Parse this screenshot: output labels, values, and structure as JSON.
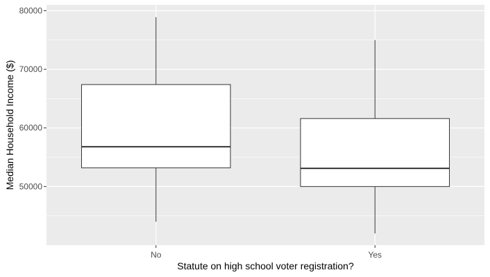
{
  "chart_data": {
    "type": "boxplot",
    "title": "",
    "xlabel": "Statute on high school voter registration?",
    "ylabel": "Median Household Income ($)",
    "categories": [
      "No",
      "Yes"
    ],
    "boxes": [
      {
        "category": "No",
        "whisker_low": 44000,
        "q1": 53200,
        "median": 56800,
        "q3": 67400,
        "whisker_high": 78900
      },
      {
        "category": "Yes",
        "whisker_low": 42000,
        "q1": 50000,
        "median": 53100,
        "q3": 61600,
        "whisker_high": 75000
      }
    ],
    "ylim": [
      40000,
      81000
    ],
    "yticks": [
      {
        "value": 50000,
        "label": "50000"
      },
      {
        "value": 60000,
        "label": "60000"
      },
      {
        "value": 70000,
        "label": "70000"
      },
      {
        "value": 80000,
        "label": "80000"
      }
    ],
    "grid": true,
    "colors": {
      "panel": "#ebebeb",
      "grid_major": "#ffffff",
      "box_fill": "#ffffff",
      "box_stroke": "#333333",
      "tick_mark": "#333333"
    }
  }
}
